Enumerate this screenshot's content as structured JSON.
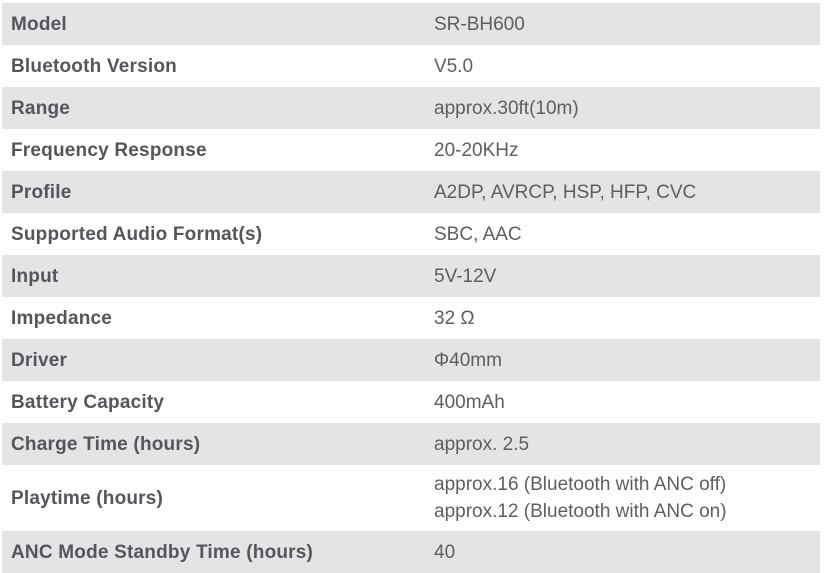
{
  "table": {
    "title": "product-specifications",
    "colors": {
      "row_shaded_bg": "#e3e4e5",
      "row_plain_bg": "#ffffff",
      "label_text": "#54565b",
      "value_text": "#5c5e62"
    },
    "rows": [
      {
        "label": "Model",
        "value_lines": [
          "SR-BH600"
        ],
        "shaded": true
      },
      {
        "label": "Bluetooth Version",
        "value_lines": [
          "V5.0"
        ],
        "shaded": false
      },
      {
        "label": "Range",
        "value_lines": [
          "approx.30ft(10m)"
        ],
        "shaded": true
      },
      {
        "label": "Frequency Response",
        "value_lines": [
          "20-20KHz"
        ],
        "shaded": false
      },
      {
        "label": "Profile",
        "value_lines": [
          "A2DP, AVRCP, HSP, HFP, CVC"
        ],
        "shaded": true
      },
      {
        "label": "Supported Audio Format(s)",
        "value_lines": [
          "SBC, AAC"
        ],
        "shaded": false
      },
      {
        "label": "Input",
        "value_lines": [
          "5V-12V"
        ],
        "shaded": true
      },
      {
        "label": "Impedance",
        "value_lines": [
          "32 Ω"
        ],
        "shaded": false
      },
      {
        "label": "Driver",
        "value_lines": [
          "Φ40mm"
        ],
        "shaded": true
      },
      {
        "label": "Battery Capacity",
        "value_lines": [
          "400mAh"
        ],
        "shaded": false
      },
      {
        "label": "Charge Time (hours)",
        "value_lines": [
          "approx. 2.5"
        ],
        "shaded": true
      },
      {
        "label": "Playtime (hours)",
        "value_lines": [
          "approx.16 (Bluetooth with ANC off)",
          "approx.12 (Bluetooth with ANC on)"
        ],
        "shaded": false
      },
      {
        "label": "ANC Mode Standby Time (hours)",
        "value_lines": [
          "40"
        ],
        "shaded": true
      }
    ]
  }
}
